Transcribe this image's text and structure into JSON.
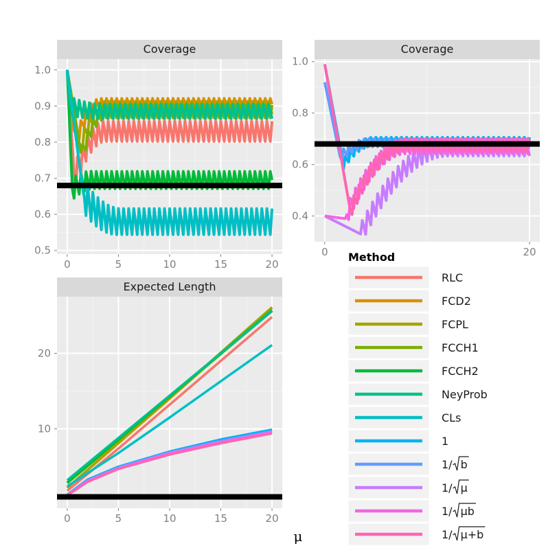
{
  "chart_data": [
    {
      "type": "line",
      "title": "Coverage",
      "xlabel": "μ",
      "ylabel": "",
      "xlim": [
        -1,
        21
      ],
      "ylim": [
        0.49,
        1.03
      ],
      "xticks": [
        "0",
        "5",
        "10",
        "15",
        "20"
      ],
      "yticks": [
        "0.5",
        "0.6",
        "0.7",
        "0.8",
        "0.9",
        "1.0"
      ],
      "reference_line": 0.68,
      "series_shape": [
        {
          "name": "RLC",
          "start": 1.0,
          "dip_at": 0.7,
          "dip": 0.7,
          "target": 0.83,
          "amp": 0.035,
          "settle": 3.0
        },
        {
          "name": "FCD2",
          "start": 1.0,
          "dip_at": 0.8,
          "dip": 0.8,
          "target": 0.905,
          "amp": 0.02,
          "settle": 2.5
        },
        {
          "name": "FCPL",
          "start": 1.0,
          "dip_at": 1.2,
          "dip": 0.78,
          "target": 0.895,
          "amp": 0.022,
          "settle": 2.5
        },
        {
          "name": "FCCH1",
          "start": 1.0,
          "dip_at": 1.4,
          "dip": 0.76,
          "target": 0.885,
          "amp": 0.022,
          "settle": 2.5
        },
        {
          "name": "FCCH2",
          "start": 1.0,
          "dip_at": 0.5,
          "dip": 0.67,
          "target": 0.695,
          "amp": 0.03,
          "settle": 2.0
        },
        {
          "name": "NeyProb",
          "start": 1.0,
          "dip_at": 0.3,
          "dip": 0.9,
          "target": 0.885,
          "amp": 0.025,
          "settle": 3.0
        },
        {
          "name": "CLs",
          "start": 1.0,
          "dip_at": 1.6,
          "dip": 0.65,
          "target": 0.58,
          "amp": 0.045,
          "settle": 3.5
        }
      ]
    },
    {
      "type": "line",
      "title": "Coverage",
      "xlabel": "μ",
      "ylabel": "",
      "xlim": [
        -1,
        21
      ],
      "ylim": [
        0.3,
        1.01
      ],
      "xticks": [
        "0",
        "20"
      ],
      "yticks": [
        "0.4",
        "0.6",
        "0.8",
        "1.0"
      ],
      "reference_line": 0.68,
      "series_shape": [
        {
          "name": "1",
          "start": 0.99,
          "dip_at": 1.8,
          "dip": 0.6,
          "target": 0.69,
          "amp": 0.02,
          "settle": 3.0
        },
        {
          "name": "1/√b",
          "start": 0.92,
          "dip_at": 1.5,
          "dip": 0.63,
          "target": 0.685,
          "amp": 0.02,
          "settle": 3.0
        },
        {
          "name": "1/√μ",
          "start": 0.4,
          "dip_at": 3.5,
          "dip": 0.33,
          "target": 0.665,
          "amp": 0.04,
          "settle": 8.5
        },
        {
          "name": "1/√μb",
          "start": 0.4,
          "dip_at": 2.0,
          "dip": 0.39,
          "target": 0.67,
          "amp": 0.035,
          "settle": 6.0
        },
        {
          "name": "1/√μ+b",
          "start": 0.99,
          "dip_at": 2.5,
          "dip": 0.42,
          "target": 0.675,
          "amp": 0.03,
          "settle": 5.5
        }
      ]
    },
    {
      "type": "line",
      "title": "Expected Length",
      "xlabel": "μ",
      "ylabel": "",
      "xlim": [
        -1,
        21
      ],
      "ylim": [
        -0.5,
        27.5
      ],
      "xticks": [
        "0",
        "5",
        "10",
        "15",
        "20"
      ],
      "yticks": [
        "10",
        "20"
      ],
      "reference_line": 1.0,
      "series": [
        {
          "name": "RLC",
          "x": [
            0,
            5,
            10,
            15,
            20
          ],
          "y": [
            1.8,
            7.4,
            13.2,
            19.0,
            24.8
          ]
        },
        {
          "name": "FCD2",
          "x": [
            0,
            5,
            10,
            15,
            20
          ],
          "y": [
            2.2,
            8.1,
            14.0,
            20.0,
            26.0
          ]
        },
        {
          "name": "FCPL",
          "x": [
            0,
            5,
            10,
            15,
            20
          ],
          "y": [
            2.2,
            8.2,
            14.1,
            20.1,
            26.1
          ]
        },
        {
          "name": "FCCH1",
          "x": [
            0,
            5,
            10,
            15,
            20
          ],
          "y": [
            2.8,
            8.5,
            14.2,
            19.9,
            25.6
          ]
        },
        {
          "name": "FCCH2",
          "x": [
            0,
            5,
            10,
            15,
            20
          ],
          "y": [
            2.9,
            8.6,
            14.3,
            20.0,
            25.7
          ]
        },
        {
          "name": "NeyProb",
          "x": [
            0,
            5,
            10,
            15,
            20
          ],
          "y": [
            3.2,
            8.8,
            14.4,
            20.0,
            25.6
          ]
        },
        {
          "name": "CLs",
          "x": [
            0,
            5,
            10,
            15,
            20
          ],
          "y": [
            2.4,
            6.8,
            11.5,
            16.3,
            21.1
          ]
        },
        {
          "name": "1",
          "x": [
            0,
            2,
            5,
            10,
            15,
            20
          ],
          "y": [
            1.3,
            3.3,
            5.0,
            7.0,
            8.6,
            9.9
          ]
        },
        {
          "name": "1/√b",
          "x": [
            0,
            2,
            5,
            10,
            15,
            20
          ],
          "y": [
            1.3,
            3.2,
            4.9,
            6.9,
            8.4,
            9.7
          ]
        },
        {
          "name": "1/√μ",
          "x": [
            0,
            2,
            5,
            10,
            15,
            20
          ],
          "y": [
            1.2,
            3.1,
            4.8,
            6.8,
            8.3,
            9.6
          ]
        },
        {
          "name": "1/√μb",
          "x": [
            0,
            2,
            5,
            10,
            15,
            20
          ],
          "y": [
            1.2,
            3.0,
            4.7,
            6.7,
            8.2,
            9.5
          ]
        },
        {
          "name": "1/√μ+b",
          "x": [
            0,
            2,
            5,
            10,
            15,
            20
          ],
          "y": [
            1.2,
            3.0,
            4.7,
            6.6,
            8.1,
            9.4
          ]
        }
      ]
    }
  ],
  "legend": {
    "title": "Method",
    "entries": [
      {
        "label": "RLC",
        "color": "#F8766D",
        "sqrt_den": ""
      },
      {
        "label": "FCD2",
        "color": "#D89000",
        "sqrt_den": ""
      },
      {
        "label": "FCPL",
        "color": "#A3A500",
        "sqrt_den": ""
      },
      {
        "label": "FCCH1",
        "color": "#7CAE00",
        "sqrt_den": ""
      },
      {
        "label": "FCCH2",
        "color": "#00BA38",
        "sqrt_den": ""
      },
      {
        "label": "NeyProb",
        "color": "#00C08B",
        "sqrt_den": ""
      },
      {
        "label": "CLs",
        "color": "#00BFC4",
        "sqrt_den": ""
      },
      {
        "label": "1",
        "color": "#00B4F0",
        "sqrt_den": ""
      },
      {
        "label": "1/",
        "color": "#619CFF",
        "sqrt_den": "b"
      },
      {
        "label": "1/",
        "color": "#C77CFF",
        "sqrt_den": "μ"
      },
      {
        "label": "1/",
        "color": "#F564E3",
        "sqrt_den": "μb"
      },
      {
        "label": "1/",
        "color": "#FF64B0",
        "sqrt_den": "μ+b"
      }
    ]
  },
  "colors": {
    "panel_bg": "#EBEBEB",
    "strip_bg": "#D9D9D9",
    "grid_major": "#FFFFFF",
    "grid_minor": "#F2F2F2",
    "reference_line": "#000000"
  }
}
